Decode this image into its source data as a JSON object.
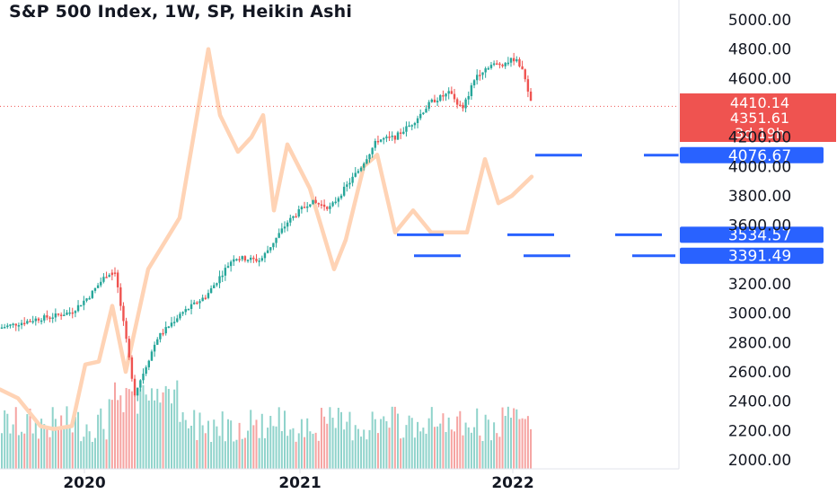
{
  "title": "S&P 500 Index, 1W, SP, Heikin Ashi",
  "colors": {
    "up": "#26a69a",
    "down": "#ef5350",
    "vol_up": "#8fd3cb",
    "vol_down": "#f6a4a2",
    "overlay": "#ffd3b5",
    "levels": "#2962ff",
    "price_tag": "#ef5350",
    "grid": "#e0e3eb",
    "text": "#131722"
  },
  "price_labels": {
    "last": "4410.14",
    "last2": "4351.61",
    "countdown": "3d 19h"
  },
  "levels": [
    {
      "value": "4076.67",
      "y": 4076.67
    },
    {
      "value": "3534.57",
      "y": 3534.57
    },
    {
      "value": "3391.49",
      "y": 3391.49
    }
  ],
  "chart_data": {
    "type": "candlestick",
    "title": "S&P 500 Index, 1W, SP, Heikin Ashi",
    "y_axis": {
      "ticks": [
        "5000.00",
        "4800.00",
        "4600.00",
        "4200.00",
        "4000.00",
        "3800.00",
        "3600.00",
        "3200.00",
        "3000.00",
        "2800.00",
        "2600.00",
        "2400.00",
        "2200.00",
        "2000.00"
      ],
      "ylim": [
        2000,
        5000
      ]
    },
    "x_axis": {
      "tick_labels": [
        "2020",
        "2021",
        "2022"
      ]
    },
    "close_series": [
      {
        "x": "2019-06",
        "y": 2900
      },
      {
        "x": "2019-07",
        "y": 2960
      },
      {
        "x": "2019-08",
        "y": 2900
      },
      {
        "x": "2019-09",
        "y": 2980
      },
      {
        "x": "2019-10",
        "y": 3010
      },
      {
        "x": "2019-11",
        "y": 3120
      },
      {
        "x": "2019-12",
        "y": 3200
      },
      {
        "x": "2020-01",
        "y": 3290
      },
      {
        "x": "2020-02",
        "y": 3330
      },
      {
        "x": "2020-03",
        "y": 2450
      },
      {
        "x": "2020-04",
        "y": 2830
      },
      {
        "x": "2020-05",
        "y": 2980
      },
      {
        "x": "2020-06",
        "y": 3100
      },
      {
        "x": "2020-07",
        "y": 3260
      },
      {
        "x": "2020-08",
        "y": 3490
      },
      {
        "x": "2020-09",
        "y": 3360
      },
      {
        "x": "2020-10",
        "y": 3300
      },
      {
        "x": "2020-11",
        "y": 3620
      },
      {
        "x": "2020-12",
        "y": 3750
      },
      {
        "x": "2021-01",
        "y": 3720
      },
      {
        "x": "2021-02",
        "y": 3850
      },
      {
        "x": "2021-03",
        "y": 3970
      },
      {
        "x": "2021-04",
        "y": 4180
      },
      {
        "x": "2021-05",
        "y": 4200
      },
      {
        "x": "2021-06",
        "y": 4300
      },
      {
        "x": "2021-07",
        "y": 4400
      },
      {
        "x": "2021-08",
        "y": 4520
      },
      {
        "x": "2021-09",
        "y": 4350
      },
      {
        "x": "2021-10",
        "y": 4600
      },
      {
        "x": "2021-11",
        "y": 4690
      },
      {
        "x": "2021-12",
        "y": 4700
      },
      {
        "x": "2022-01",
        "y": 4600
      },
      {
        "x": "2022-01b",
        "y": 4410
      }
    ],
    "overlay_series": [
      {
        "x": "2019-06",
        "y": 2480
      },
      {
        "x": "2019-09",
        "y": 2420
      },
      {
        "x": "2019-12",
        "y": 2230
      },
      {
        "x": "2020-01",
        "y": 2650
      },
      {
        "x": "2020-02",
        "y": 2670
      },
      {
        "x": "2020-03",
        "y": 3050
      },
      {
        "x": "2020-04",
        "y": 3450
      },
      {
        "x": "2020-05",
        "y": 3900
      },
      {
        "x": "2020-06",
        "y": 4800
      },
      {
        "x": "2020-07",
        "y": 4400
      },
      {
        "x": "2020-08",
        "y": 4300
      },
      {
        "x": "2020-09",
        "y": 4150
      },
      {
        "x": "2020-10",
        "y": 4350
      },
      {
        "x": "2020-11",
        "y": 3750
      },
      {
        "x": "2020-12",
        "y": 4150
      },
      {
        "x": "2021-01",
        "y": 3900
      },
      {
        "x": "2021-02",
        "y": 3700
      },
      {
        "x": "2021-03",
        "y": 3400
      },
      {
        "x": "2021-04",
        "y": 3500
      },
      {
        "x": "2021-05",
        "y": 4000
      },
      {
        "x": "2021-06",
        "y": 3600
      },
      {
        "x": "2021-07",
        "y": 3700
      },
      {
        "x": "2021-08",
        "y": 3550
      },
      {
        "x": "2021-09",
        "y": 3700
      },
      {
        "x": "2021-10",
        "y": 3950
      },
      {
        "x": "2021-11",
        "y": 3700
      },
      {
        "x": "2021-12",
        "y": 3800
      },
      {
        "x": "2022-01",
        "y": 3930
      }
    ],
    "legend": "none",
    "grid": true
  }
}
